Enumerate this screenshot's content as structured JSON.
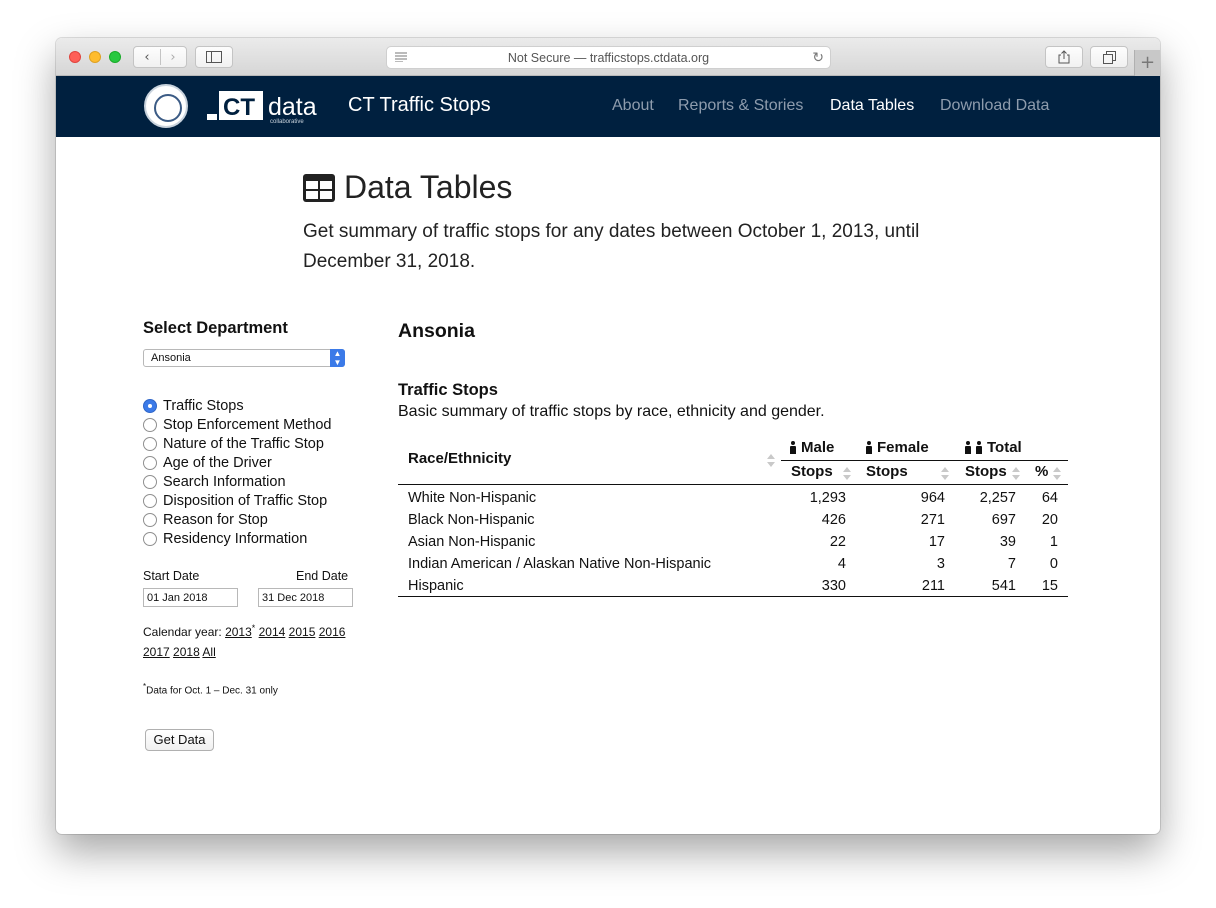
{
  "browser": {
    "url_text": "Not Secure — trafficstops.ctdata.org",
    "nav_back": "‹",
    "nav_forward": "›",
    "new_tab": "+"
  },
  "site": {
    "title": "CT Traffic Stops",
    "logo_ct": "CT",
    "logo_data": "data",
    "logo_sub": "collaborative",
    "nav": {
      "about": "About",
      "reports": "Reports & Stories",
      "tables": "Data Tables",
      "download": "Download Data"
    },
    "colors": {
      "header_bg": "#00203f",
      "nav_active": "#ffffff",
      "nav_inactive": "#8e9cad",
      "accent": "#3b7ae8"
    }
  },
  "page": {
    "title": "Data Tables",
    "subtitle": "Get summary of traffic stops for any dates between October 1, 2013, until December 31, 2018."
  },
  "sidebar": {
    "heading": "Select Department",
    "department_value": "Ansonia",
    "options": [
      {
        "label": "Traffic Stops",
        "selected": true
      },
      {
        "label": "Stop Enforcement Method",
        "selected": false
      },
      {
        "label": "Nature of the Traffic Stop",
        "selected": false
      },
      {
        "label": "Age of the Driver",
        "selected": false
      },
      {
        "label": "Search Information",
        "selected": false
      },
      {
        "label": "Disposition of Traffic Stop",
        "selected": false
      },
      {
        "label": "Reason for Stop",
        "selected": false
      },
      {
        "label": "Residency Information",
        "selected": false
      }
    ],
    "start_label": "Start Date",
    "end_label": "End Date",
    "start_value": "01 Jan 2018",
    "end_value": "31 Dec 2018",
    "calendar_label": "Calendar year:",
    "years": [
      "2013",
      "2014",
      "2015",
      "2016",
      "2017",
      "2018",
      "All"
    ],
    "asterisk": "*",
    "footnote": "Data for Oct. 1 – Dec. 31 only",
    "button": "Get Data"
  },
  "main": {
    "department": "Ansonia",
    "section_title": "Traffic Stops",
    "section_desc": "Basic summary of traffic stops by race, ethnicity and gender.",
    "table": {
      "race_header": "Race/Ethnicity",
      "group_male": "Male",
      "group_female": "Female",
      "group_total": "Total",
      "stops_header": "Stops",
      "pct_header": "%",
      "rows": [
        {
          "race": "White Non-Hispanic",
          "male": "1,293",
          "female": "964",
          "total": "2,257",
          "pct": "64"
        },
        {
          "race": "Black Non-Hispanic",
          "male": "426",
          "female": "271",
          "total": "697",
          "pct": "20"
        },
        {
          "race": "Asian Non-Hispanic",
          "male": "22",
          "female": "17",
          "total": "39",
          "pct": "1"
        },
        {
          "race": "Indian American / Alaskan Native Non-Hispanic",
          "male": "4",
          "female": "3",
          "total": "7",
          "pct": "0"
        },
        {
          "race": "Hispanic",
          "male": "330",
          "female": "211",
          "total": "541",
          "pct": "15"
        }
      ]
    }
  }
}
